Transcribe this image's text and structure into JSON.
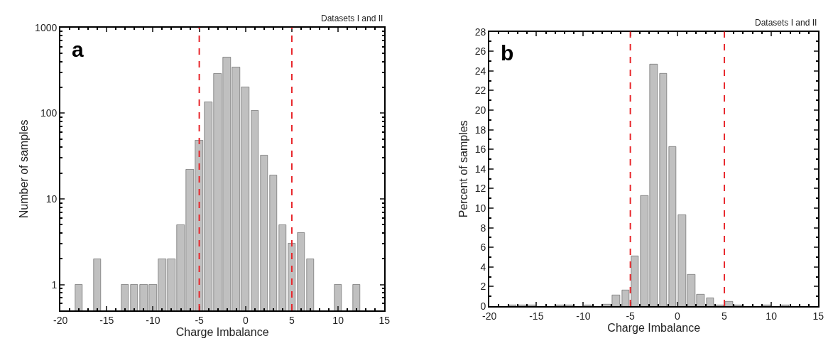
{
  "chart_data": [
    {
      "type": "histogram",
      "annotations": [
        "a",
        "Datasets I and II"
      ],
      "xlabel": "Charge Imbalance",
      "ylabel": "Number of samples",
      "bins": [
        -18.5,
        -17.5,
        -16.5,
        -15.5,
        -14.5,
        -13.5,
        -12.5,
        -11.5,
        -10.5,
        -9.5,
        -8.5,
        -7.5,
        -6.5,
        -5.5,
        -4.5,
        -3.5,
        -2.5,
        -1.5,
        -0.5,
        0.5,
        1.5,
        2.5,
        3.5,
        4.5,
        5.5,
        6.5,
        7.5,
        8.5,
        9.5,
        10.5,
        11.5,
        12.5
      ],
      "values": [
        1,
        null,
        2,
        null,
        null,
        1,
        1,
        1,
        1,
        2,
        2,
        5,
        22,
        48,
        136,
        290,
        450,
        344,
        200,
        107,
        32,
        19,
        5,
        3,
        4,
        2,
        null,
        null,
        1,
        null,
        1
      ],
      "color": "#c0c0c0",
      "log": "y",
      "xlim": [
        -20,
        15
      ],
      "xticks": [
        -20,
        -15,
        -10,
        -5,
        0,
        5,
        10,
        15
      ],
      "ylim": [
        0.5,
        1000
      ],
      "yticks": [
        1,
        10,
        100,
        1000
      ],
      "ref_lines": [
        {
          "axis": "x",
          "value": -5,
          "color": "#e8262b",
          "line_style": "dashed"
        },
        {
          "axis": "x",
          "value": 5,
          "color": "#e8262b",
          "line_style": "dashed"
        }
      ]
    },
    {
      "type": "histogram",
      "annotations": [
        "b",
        "Datasets I and II"
      ],
      "xlabel": "Charge Imbalance",
      "ylabel": "Percent of samples",
      "bins": [
        -18,
        -17,
        -16,
        -15,
        -14,
        -13,
        -12,
        -11,
        -10,
        -9,
        -8,
        -7,
        -6,
        -5,
        -4,
        -3,
        -2,
        -1,
        0,
        1,
        2,
        3,
        4,
        5,
        6,
        7,
        8,
        9,
        10,
        11,
        12,
        13
      ],
      "values": [
        0.1,
        0.1,
        0.1,
        null,
        null,
        0.1,
        0.1,
        null,
        0.1,
        null,
        0.2,
        1.1,
        1.6,
        5.1,
        11.3,
        24.7,
        23.7,
        16.3,
        9.3,
        3.2,
        1.2,
        0.8,
        0.1,
        0.5,
        0.1,
        null,
        null,
        0.1,
        null,
        0.1,
        null
      ],
      "color": "#c0c0c0",
      "xlim": [
        -20,
        15
      ],
      "xticks": [
        -20,
        -15,
        -10,
        -5,
        0,
        5,
        10,
        15
      ],
      "ylim": [
        0,
        28
      ],
      "yticks": [
        0,
        2,
        4,
        6,
        8,
        10,
        12,
        14,
        16,
        18,
        20,
        22,
        24,
        26,
        28
      ],
      "ref_lines": [
        {
          "axis": "x",
          "value": -5,
          "color": "#e8262b",
          "line_style": "dashed"
        },
        {
          "axis": "x",
          "value": 5,
          "color": "#e8262b",
          "line_style": "dashed"
        }
      ]
    }
  ]
}
